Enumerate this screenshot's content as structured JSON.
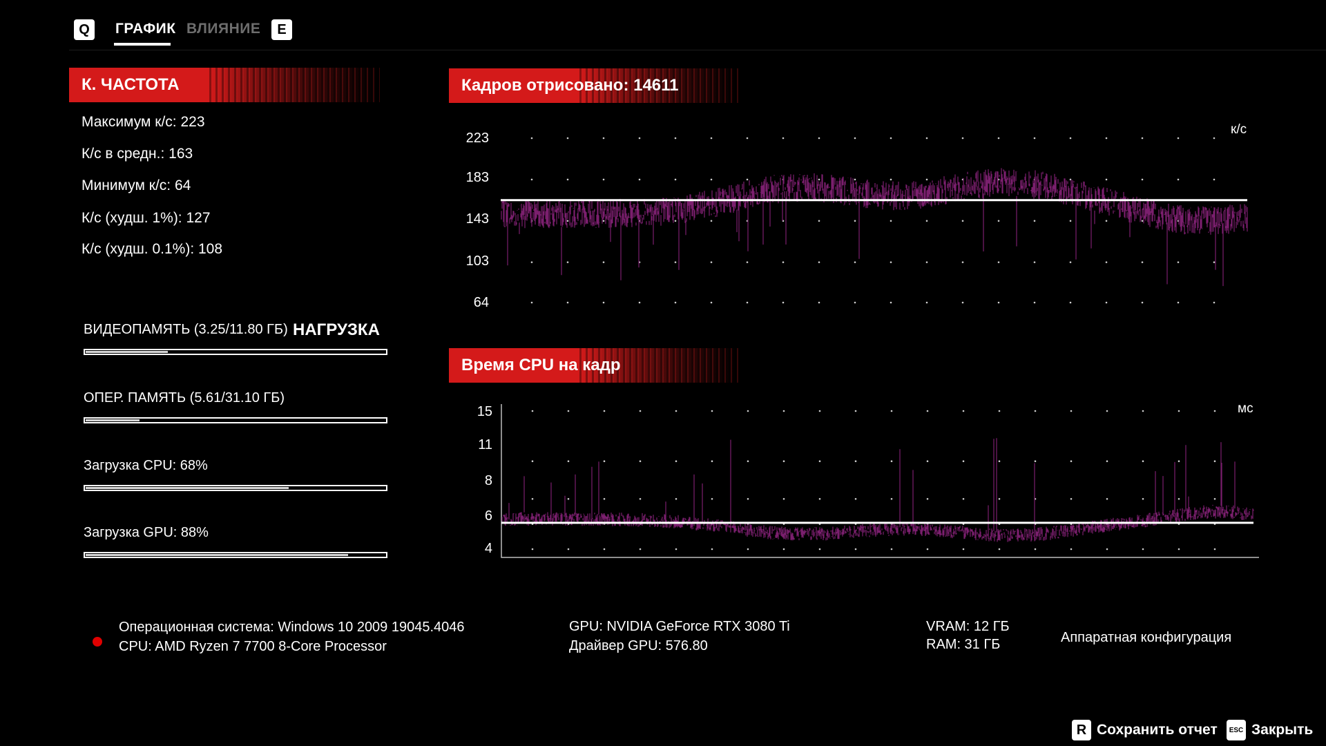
{
  "tabs": {
    "left_key": "Q",
    "right_key": "E",
    "items": [
      {
        "label": "ГРАФИК",
        "active": true
      },
      {
        "label": "ВЛИЯНИЕ",
        "active": false
      }
    ]
  },
  "fps_panel": {
    "title": "К. ЧАСТОТА",
    "stats": [
      "Максимум к/с: 223",
      "К/с в средн.: 163",
      "Минимум к/с: 64",
      "К/с (худш. 1%): 127",
      "К/с (худш. 0.1%): 108"
    ]
  },
  "load_heading": "НАГРУЗКА",
  "meters": [
    {
      "label": "ВИДЕОПАМЯТЬ (3.25/11.80 ГБ)",
      "fraction": 0.275
    },
    {
      "label": "ОПЕР. ПАМЯТЬ (5.61/31.10 ГБ)",
      "fraction": 0.18
    },
    {
      "label": "Загрузка CPU: 68%",
      "fraction": 0.68
    },
    {
      "label": "Загрузка GPU: 88%",
      "fraction": 0.88
    }
  ],
  "fps_chart": {
    "title": "Кадров отрисовано: 14611",
    "unit": "к/с",
    "ticks": [
      "223",
      "183",
      "143",
      "103",
      "64"
    ],
    "tick_values": [
      223,
      183,
      143,
      103,
      64
    ],
    "ylim": [
      64,
      223
    ],
    "average": 163,
    "color": "#7b1f6e"
  },
  "cpu_chart": {
    "title": "Время CPU на кадр",
    "unit": "мс",
    "ticks": [
      "15",
      "11",
      "8",
      "6",
      "4"
    ],
    "tick_values": [
      15,
      11,
      8,
      6,
      4
    ],
    "ylim": [
      4,
      15
    ],
    "average": 6.1,
    "color": "#7b1f6e"
  },
  "system_info": {
    "indicator_color": "#e00000",
    "os": "Операционная система: Windows 10 2009 19045.4046",
    "cpu": "CPU: AMD Ryzen 7 7700 8-Core Processor",
    "gpu": "GPU: NVIDIA GeForce RTX 3080 Ti",
    "driver": "Драйвер GPU: 576.80",
    "vram": "VRAM: 12 ГБ",
    "ram": "RAM: 31 ГБ",
    "hardware_config": "Аппаратная конфигурация"
  },
  "footer": {
    "save_key": "R",
    "save_label": "Сохранить отчет",
    "close_key": "ESC",
    "close_label": "Закрыть"
  }
}
